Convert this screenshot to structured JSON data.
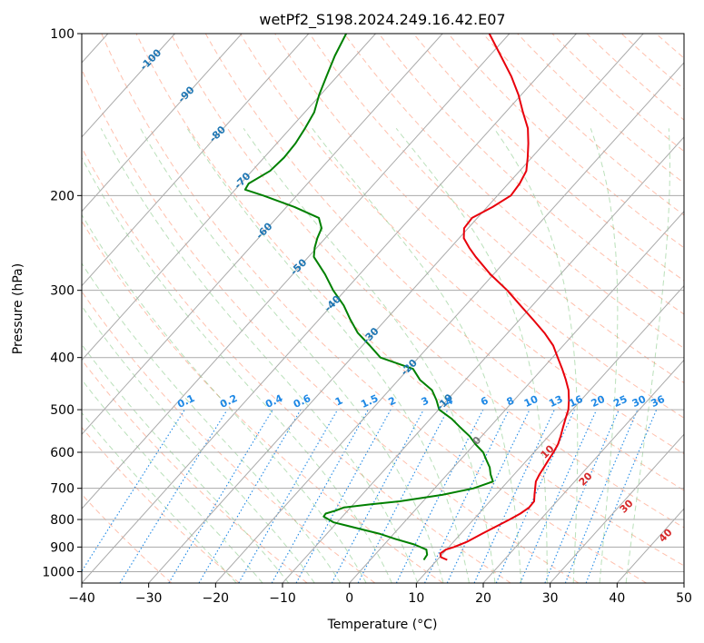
{
  "chart_data": {
    "type": "line",
    "title": "wetPf2_S198.2024.249.16.42.E07",
    "xlabel": "Temperature (°C)",
    "ylabel": "Pressure (hPa)",
    "xlim": [
      -40,
      50
    ],
    "ylim": [
      1050,
      100
    ],
    "y_scale": "log",
    "skew": "skew-T",
    "grid": true,
    "x_ticks": [
      -40,
      -30,
      -20,
      -10,
      0,
      10,
      20,
      30,
      40,
      50
    ],
    "y_ticks": [
      100,
      200,
      300,
      400,
      500,
      600,
      700,
      800,
      900,
      1000
    ],
    "colors": {
      "temperature": "#e8000b",
      "dewpoint": "#008000",
      "isotherm": "#aaaaaa",
      "dry_adiabat": "#ff8c69",
      "moist_adiabat": "#66bb66",
      "mixing_ratio": "#1e88e5",
      "isotherm_label": "#1f77b4",
      "moist_label": "#d62728"
    },
    "series": [
      {
        "pressure": [
          951,
          940,
          925,
          910,
          900,
          880,
          850,
          820,
          800,
          780,
          760,
          740,
          720,
          700,
          680,
          660,
          640,
          620,
          600,
          580,
          560,
          540,
          520,
          500,
          480,
          460,
          440,
          420,
          400,
          380,
          360,
          340,
          320,
          300,
          280,
          260,
          250,
          240,
          230,
          220,
          210,
          200,
          190,
          180,
          170,
          160,
          150,
          140,
          130,
          120,
          110,
          100
        ],
        "values": [
          11.5,
          10.2,
          9.6,
          9.9,
          10.8,
          12.0,
          13.2,
          14.5,
          15.4,
          16.2,
          16.7,
          16.6,
          15.8,
          15.0,
          14.2,
          13.8,
          13.5,
          13.2,
          12.9,
          12.5,
          11.8,
          11.0,
          10.2,
          9.4,
          8.2,
          6.8,
          5.0,
          3.0,
          0.8,
          -1.5,
          -4.5,
          -8.0,
          -11.8,
          -15.8,
          -20.5,
          -25.0,
          -27.2,
          -29.3,
          -30.6,
          -30.8,
          -29.2,
          -28.0,
          -28.3,
          -29.0,
          -30.6,
          -32.4,
          -34.5,
          -37.4,
          -40.4,
          -44.0,
          -48.3,
          -53.0
        ]
      },
      {
        "pressure": [
          951,
          930,
          910,
          890,
          870,
          850,
          830,
          810,
          790,
          780,
          770,
          760,
          750,
          740,
          720,
          700,
          680,
          660,
          640,
          620,
          600,
          580,
          560,
          540,
          520,
          500,
          480,
          460,
          440,
          420,
          400,
          380,
          360,
          340,
          320,
          300,
          280,
          260,
          250,
          240,
          230,
          220,
          210,
          200,
          195,
          190,
          180,
          170,
          160,
          150,
          140,
          130,
          120,
          110,
          100
        ],
        "values": [
          8.0,
          7.8,
          7.0,
          4.5,
          1.0,
          -2.2,
          -6.3,
          -10.5,
          -12.8,
          -12.9,
          -11.8,
          -11.0,
          -7.5,
          -3.5,
          2.0,
          5.8,
          7.8,
          6.5,
          5.4,
          3.9,
          2.4,
          0.2,
          -1.8,
          -4.3,
          -6.8,
          -9.9,
          -11.6,
          -13.6,
          -16.8,
          -19.3,
          -25.7,
          -28.9,
          -32.4,
          -35.3,
          -38.2,
          -41.8,
          -45.2,
          -49.2,
          -50.3,
          -51.2,
          -51.9,
          -53.7,
          -58.8,
          -65.0,
          -68.5,
          -68.8,
          -67.3,
          -67.0,
          -67.2,
          -67.8,
          -68.6,
          -70.2,
          -71.6,
          -73.1,
          -74.4
        ]
      }
    ],
    "annotations": {
      "isotherm_labels": [
        "-100",
        "-90",
        "-80",
        "-70",
        "-60",
        "-50",
        "-40",
        "-30",
        "-20",
        "-10",
        "0"
      ],
      "mixing_ratio_labels": [
        "0.1",
        "0.2",
        "0.4",
        "0.6",
        "1",
        "1.5",
        "2",
        "3",
        "4",
        "6",
        "8",
        "10",
        "13",
        "16",
        "20",
        "25",
        "30",
        "36"
      ],
      "moist_adiabat_labels": [
        "10",
        "20",
        "30",
        "40"
      ]
    }
  }
}
